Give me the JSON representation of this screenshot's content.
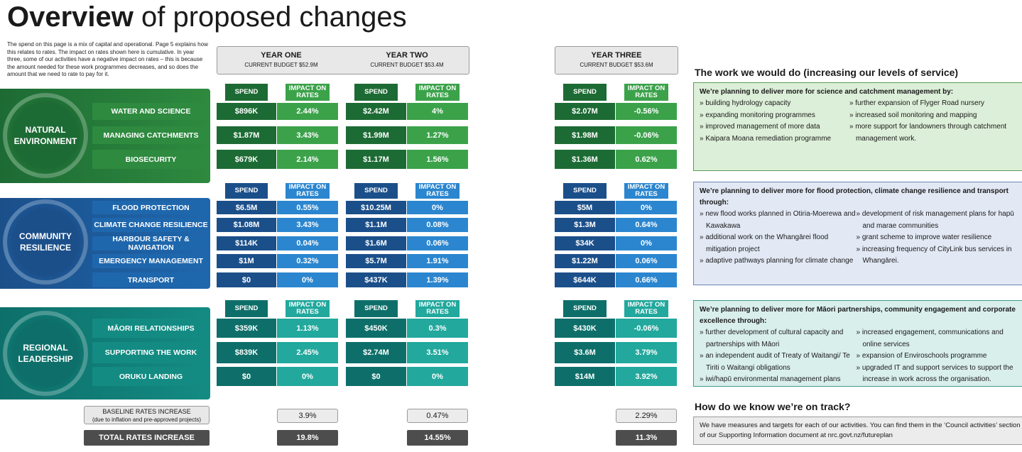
{
  "title": {
    "bold": "Overview",
    "rest": "of proposed changes"
  },
  "intro": "The spend on this page is a mix of capital and operational. Page 5 explains how this relates to rates. The impact on rates shown here is cumulative. In year three, some of our activities have a negative impact on rates – this is because the amount needed for these work programmes decreases, and so does the amount that we need to rate to pay for it.",
  "years": [
    {
      "name": "YEAR ONE",
      "budget": "CURRENT BUDGET $52.9M"
    },
    {
      "name": "YEAR TWO",
      "budget": "CURRENT BUDGET $53.4M"
    },
    {
      "name": "YEAR THREE",
      "budget": "CURRENT BUDGET $53.6M"
    }
  ],
  "col_headers": {
    "spend": "SPEND",
    "impact1": "IMPACT ON",
    "impact2": "RATES"
  },
  "colors": {
    "natural_dark": "#1d6b34",
    "natural_mid": "#2e8a3f",
    "natural_light": "#3ba24a",
    "community_dark": "#1b4f8a",
    "community_mid": "#1f67ad",
    "community_light": "#2b86cf",
    "regional_dark": "#0e6f6a",
    "regional_mid": "#138b83",
    "regional_light": "#22a89d"
  },
  "groups": [
    {
      "name": "NATURAL ENVIRONMENT",
      "rows": [
        {
          "label": "WATER AND SCIENCE",
          "y1": [
            "$896K",
            "2.44%"
          ],
          "y2": [
            "$2.42M",
            "4%"
          ],
          "y3": [
            "$2.07M",
            "-0.56%"
          ]
        },
        {
          "label": "MANAGING CATCHMENTS",
          "y1": [
            "$1.87M",
            "3.43%"
          ],
          "y2": [
            "$1.99M",
            "1.27%"
          ],
          "y3": [
            "$1.98M",
            "-0.06%"
          ]
        },
        {
          "label": "BIOSECURITY",
          "y1": [
            "$679K",
            "2.14%"
          ],
          "y2": [
            "$1.17M",
            "1.56%"
          ],
          "y3": [
            "$1.36M",
            "0.62%"
          ]
        }
      ]
    },
    {
      "name": "COMMUNITY RESILIENCE",
      "rows": [
        {
          "label": "FLOOD PROTECTION",
          "y1": [
            "$6.5M",
            "0.55%"
          ],
          "y2": [
            "$10.25M",
            "0%"
          ],
          "y3": [
            "$5M",
            "0%"
          ]
        },
        {
          "label": "CLIMATE CHANGE RESILIENCE",
          "y1": [
            "$1.08M",
            "3.43%"
          ],
          "y2": [
            "$1.1M",
            "0.08%"
          ],
          "y3": [
            "$1.3M",
            "0.64%"
          ]
        },
        {
          "label": "HARBOUR SAFETY & NAVIGATION",
          "y1": [
            "$114K",
            "0.04%"
          ],
          "y2": [
            "$1.6M",
            "0.06%"
          ],
          "y3": [
            "$34K",
            "0%"
          ]
        },
        {
          "label": "EMERGENCY MANAGEMENT",
          "y1": [
            "$1M",
            "0.32%"
          ],
          "y2": [
            "$5.7M",
            "1.91%"
          ],
          "y3": [
            "$1.22M",
            "0.06%"
          ]
        },
        {
          "label": "TRANSPORT",
          "y1": [
            "$0",
            "0%"
          ],
          "y2": [
            "$437K",
            "1.39%"
          ],
          "y3": [
            "$644K",
            "0.66%"
          ]
        }
      ]
    },
    {
      "name": "REGIONAL LEADERSHIP",
      "rows": [
        {
          "label": "MĀORI RELATIONSHIPS",
          "y1": [
            "$359K",
            "1.13%"
          ],
          "y2": [
            "$450K",
            "0.3%"
          ],
          "y3": [
            "$430K",
            "-0.06%"
          ]
        },
        {
          "label": "SUPPORTING THE WORK",
          "y1": [
            "$839K",
            "2.45%"
          ],
          "y2": [
            "$2.74M",
            "3.51%"
          ],
          "y3": [
            "$3.6M",
            "3.79%"
          ]
        },
        {
          "label": "ORUKU LANDING",
          "y1": [
            "$0",
            "0%"
          ],
          "y2": [
            "$0",
            "0%"
          ],
          "y3": [
            "$14M",
            "3.92%"
          ]
        }
      ]
    }
  ],
  "baseline": {
    "label1": "BASELINE RATES INCREASE",
    "label2": "(due to inflation and pre-approved projects)",
    "values": [
      "3.9%",
      "0.47%",
      "2.29%"
    ]
  },
  "total": {
    "label": "TOTAL RATES INCREASE",
    "values": [
      "19.8%",
      "14.55%",
      "11.3%"
    ]
  },
  "right": {
    "heading": "The work we would do (increasing our levels of service)",
    "boxes": [
      {
        "title": "We’re planning to deliver more for science and catchment management by:",
        "left": [
          "» building hydrology capacity",
          "» expanding monitoring programmes",
          "» improved management of more data",
          "» Kaipara Moana remediation programme"
        ],
        "right": [
          "» further expansion of Flyger Road nursery",
          "» increased soil monitoring and mapping",
          "» more support for landowners through catchment management work."
        ]
      },
      {
        "title": "We’re planning to deliver more for flood protection, climate change resilience and transport through:",
        "left": [
          "» new flood works planned in Otiria-Moerewa and Kawakawa",
          "» additional work on the Whangārei flood mitigation project",
          "» adaptive pathways planning for climate change"
        ],
        "right": [
          "» development of risk management plans for hapū and marae communities",
          "» grant scheme to improve water resilience",
          "» increasing frequency of CityLink bus services in Whangārei."
        ]
      },
      {
        "title": "We’re planning to deliver more for Māori partnerships, community engagement and corporate excellence through:",
        "left": [
          "» further development of cultural capacity and partnerships with Māori",
          "» an independent audit of Treaty of Waitangi/ Te Tiriti o Waitangi obligations",
          "» iwi/hapū environmental management plans"
        ],
        "right": [
          "» increased engagement, communications and online services",
          "» expansion of Enviroschools programme",
          "» upgraded IT and support services to support the increase in work across the organisation."
        ]
      }
    ],
    "track_heading": "How do we know we’re on track?",
    "track_text": "We have measures and targets for each of our activities. You can find them in the ‘Council activities’ section of our Supporting Information document at nrc.govt.nz/futureplan"
  }
}
